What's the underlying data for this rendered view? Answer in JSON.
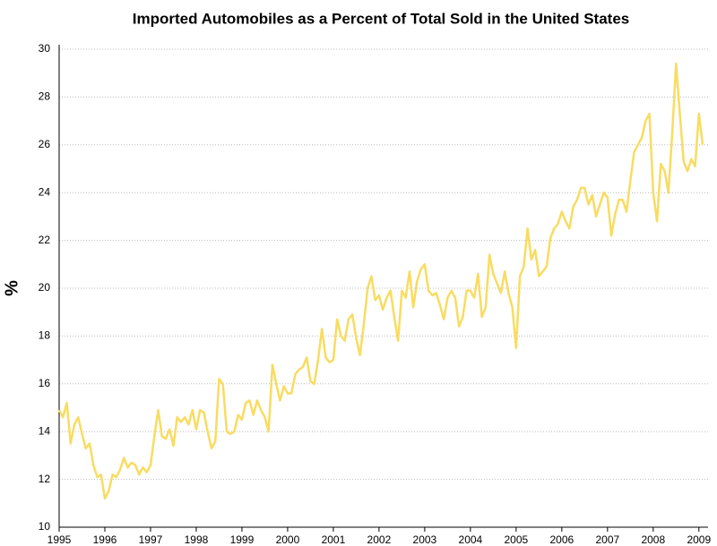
{
  "chart_data": {
    "type": "line",
    "title": "Imported Automobiles as a Percent of Total Sold in the United States",
    "y_label": "%",
    "x": [
      1995.0,
      1995.083,
      1995.167,
      1995.25,
      1995.333,
      1995.417,
      1995.5,
      1995.583,
      1995.667,
      1995.75,
      1995.833,
      1995.917,
      1996.0,
      1996.083,
      1996.167,
      1996.25,
      1996.333,
      1996.417,
      1996.5,
      1996.583,
      1996.667,
      1996.75,
      1996.833,
      1996.917,
      1997.0,
      1997.083,
      1997.167,
      1997.25,
      1997.333,
      1997.417,
      1997.5,
      1997.583,
      1997.667,
      1997.75,
      1997.833,
      1997.917,
      1998.0,
      1998.083,
      1998.167,
      1998.25,
      1998.333,
      1998.417,
      1998.5,
      1998.583,
      1998.667,
      1998.75,
      1998.833,
      1998.917,
      1999.0,
      1999.083,
      1999.167,
      1999.25,
      1999.333,
      1999.417,
      1999.5,
      1999.583,
      1999.667,
      1999.75,
      1999.833,
      1999.917,
      2000.0,
      2000.083,
      2000.167,
      2000.25,
      2000.333,
      2000.417,
      2000.5,
      2000.583,
      2000.667,
      2000.75,
      2000.833,
      2000.917,
      2001.0,
      2001.083,
      2001.167,
      2001.25,
      2001.333,
      2001.417,
      2001.5,
      2001.583,
      2001.667,
      2001.75,
      2001.833,
      2001.917,
      2002.0,
      2002.083,
      2002.167,
      2002.25,
      2002.333,
      2002.417,
      2002.5,
      2002.583,
      2002.667,
      2002.75,
      2002.833,
      2002.917,
      2003.0,
      2003.083,
      2003.167,
      2003.25,
      2003.333,
      2003.417,
      2003.5,
      2003.583,
      2003.667,
      2003.75,
      2003.833,
      2003.917,
      2004.0,
      2004.083,
      2004.167,
      2004.25,
      2004.333,
      2004.417,
      2004.5,
      2004.583,
      2004.667,
      2004.75,
      2004.833,
      2004.917,
      2005.0,
      2005.083,
      2005.167,
      2005.25,
      2005.333,
      2005.417,
      2005.5,
      2005.583,
      2005.667,
      2005.75,
      2005.833,
      2005.917,
      2006.0,
      2006.083,
      2006.167,
      2006.25,
      2006.333,
      2006.417,
      2006.5,
      2006.583,
      2006.667,
      2006.75,
      2006.833,
      2006.917,
      2007.0,
      2007.083,
      2007.167,
      2007.25,
      2007.333,
      2007.417,
      2007.5,
      2007.583,
      2007.667,
      2007.75,
      2007.833,
      2007.917,
      2008.0,
      2008.083,
      2008.167,
      2008.25,
      2008.333,
      2008.417,
      2008.5,
      2008.583,
      2008.667,
      2008.75,
      2008.833,
      2008.917,
      2009.0,
      2009.083
    ],
    "series": [
      {
        "color": "#f8dc62",
        "values": [
          14.9,
          14.6,
          15.2,
          13.5,
          14.3,
          14.6,
          13.9,
          13.3,
          13.5,
          12.6,
          12.1,
          12.2,
          11.2,
          11.5,
          12.2,
          12.1,
          12.4,
          12.9,
          12.5,
          12.7,
          12.6,
          12.2,
          12.5,
          12.3,
          12.6,
          13.8,
          14.9,
          13.8,
          13.7,
          14.1,
          13.4,
          14.6,
          14.4,
          14.6,
          14.3,
          14.9,
          14.1,
          14.9,
          14.8,
          14.0,
          13.3,
          13.6,
          16.2,
          16.0,
          14.0,
          13.9,
          14.0,
          14.7,
          14.5,
          15.2,
          15.3,
          14.7,
          15.3,
          14.9,
          14.6,
          14.0,
          16.8,
          16.0,
          15.3,
          15.9,
          15.6,
          15.6,
          16.4,
          16.6,
          16.7,
          17.1,
          16.1,
          16.0,
          17.0,
          18.3,
          17.1,
          16.9,
          17.0,
          18.7,
          18.0,
          17.8,
          18.7,
          18.9,
          17.9,
          17.2,
          18.5,
          20.0,
          20.5,
          19.5,
          19.7,
          19.1,
          19.6,
          19.9,
          18.8,
          17.8,
          19.9,
          19.6,
          20.7,
          19.2,
          20.3,
          20.8,
          21.0,
          19.9,
          19.7,
          19.8,
          19.3,
          18.7,
          19.6,
          19.9,
          19.6,
          18.4,
          18.8,
          19.9,
          19.9,
          19.6,
          20.6,
          18.8,
          19.2,
          21.4,
          20.6,
          20.2,
          19.8,
          20.7,
          19.8,
          19.2,
          17.5,
          20.5,
          20.9,
          22.5,
          21.2,
          21.6,
          20.5,
          20.7,
          20.9,
          22.1,
          22.5,
          22.7,
          23.2,
          22.8,
          22.5,
          23.4,
          23.7,
          24.2,
          24.2,
          23.5,
          23.9,
          23.0,
          23.5,
          24.0,
          23.8,
          22.2,
          23.1,
          23.7,
          23.7,
          23.2,
          24.5,
          25.7,
          26.0,
          26.3,
          27.0,
          27.3,
          24.0,
          22.8,
          25.2,
          24.9,
          24.0,
          26.5,
          29.4,
          27.3,
          25.3,
          24.9,
          25.4,
          25.1,
          27.3,
          26.0
        ]
      }
    ],
    "xlim": [
      1995,
      2009.2
    ],
    "xticks": [
      1995,
      1996,
      1997,
      1998,
      1999,
      2000,
      2001,
      2002,
      2003,
      2004,
      2005,
      2006,
      2007,
      2008,
      2009
    ],
    "ylim": [
      10,
      30
    ],
    "yticks": [
      10,
      12,
      14,
      16,
      18,
      20,
      22,
      24,
      26,
      28,
      30
    ],
    "grid": true
  }
}
